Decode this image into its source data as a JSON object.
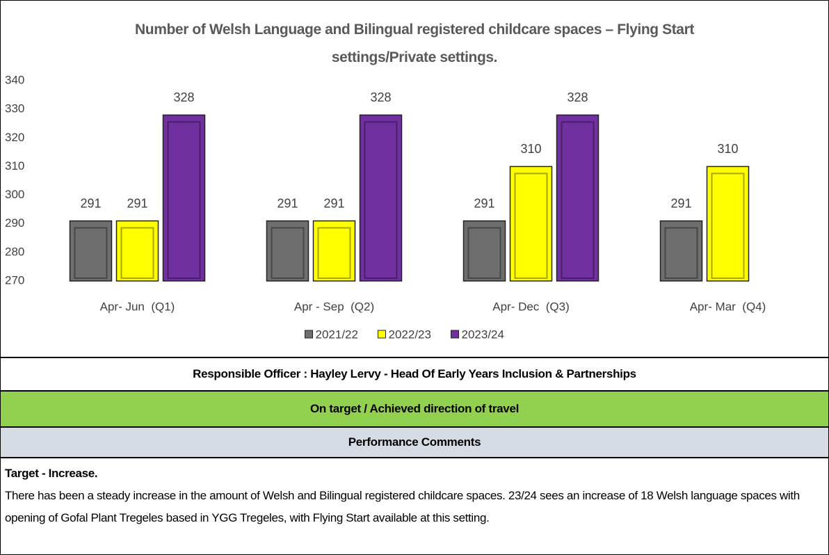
{
  "chart_data": {
    "type": "bar",
    "title": "Number of Welsh Language and Bilingual registered childcare spaces – Flying Start settings/Private settings.",
    "categories": [
      "Apr- Jun  (Q1)",
      "Apr - Sep  (Q2)",
      "Apr- Dec  (Q3)",
      "Apr- Mar  (Q4)"
    ],
    "series": [
      {
        "name": "2021/22",
        "color": "#6e6e6e",
        "values": [
          291,
          291,
          291,
          291
        ]
      },
      {
        "name": "2022/23",
        "color": "#ffff00",
        "values": [
          291,
          291,
          310,
          310
        ]
      },
      {
        "name": "2023/24",
        "color": "#7030a0",
        "values": [
          328,
          328,
          328,
          null
        ]
      }
    ],
    "ylim": [
      270,
      340
    ],
    "yticks": [
      270,
      280,
      290,
      300,
      310,
      320,
      330,
      340
    ],
    "grid": false,
    "legend": "bottom"
  },
  "officer": "Responsible Officer :   Hayley Lervy   -  Head Of Early Years Inclusion & Partnerships",
  "status": "On target / Achieved direction of travel",
  "comments_header": "Performance Comments",
  "target": "Target - Increase.",
  "comment": "There has been a steady increase in the amount of Welsh and Bilingual registered childcare spaces. 23/24 sees an increase of 18 Welsh language spaces with opening of Gofal Plant Tregeles based in YGG Tregeles, with Flying Start available at this setting."
}
